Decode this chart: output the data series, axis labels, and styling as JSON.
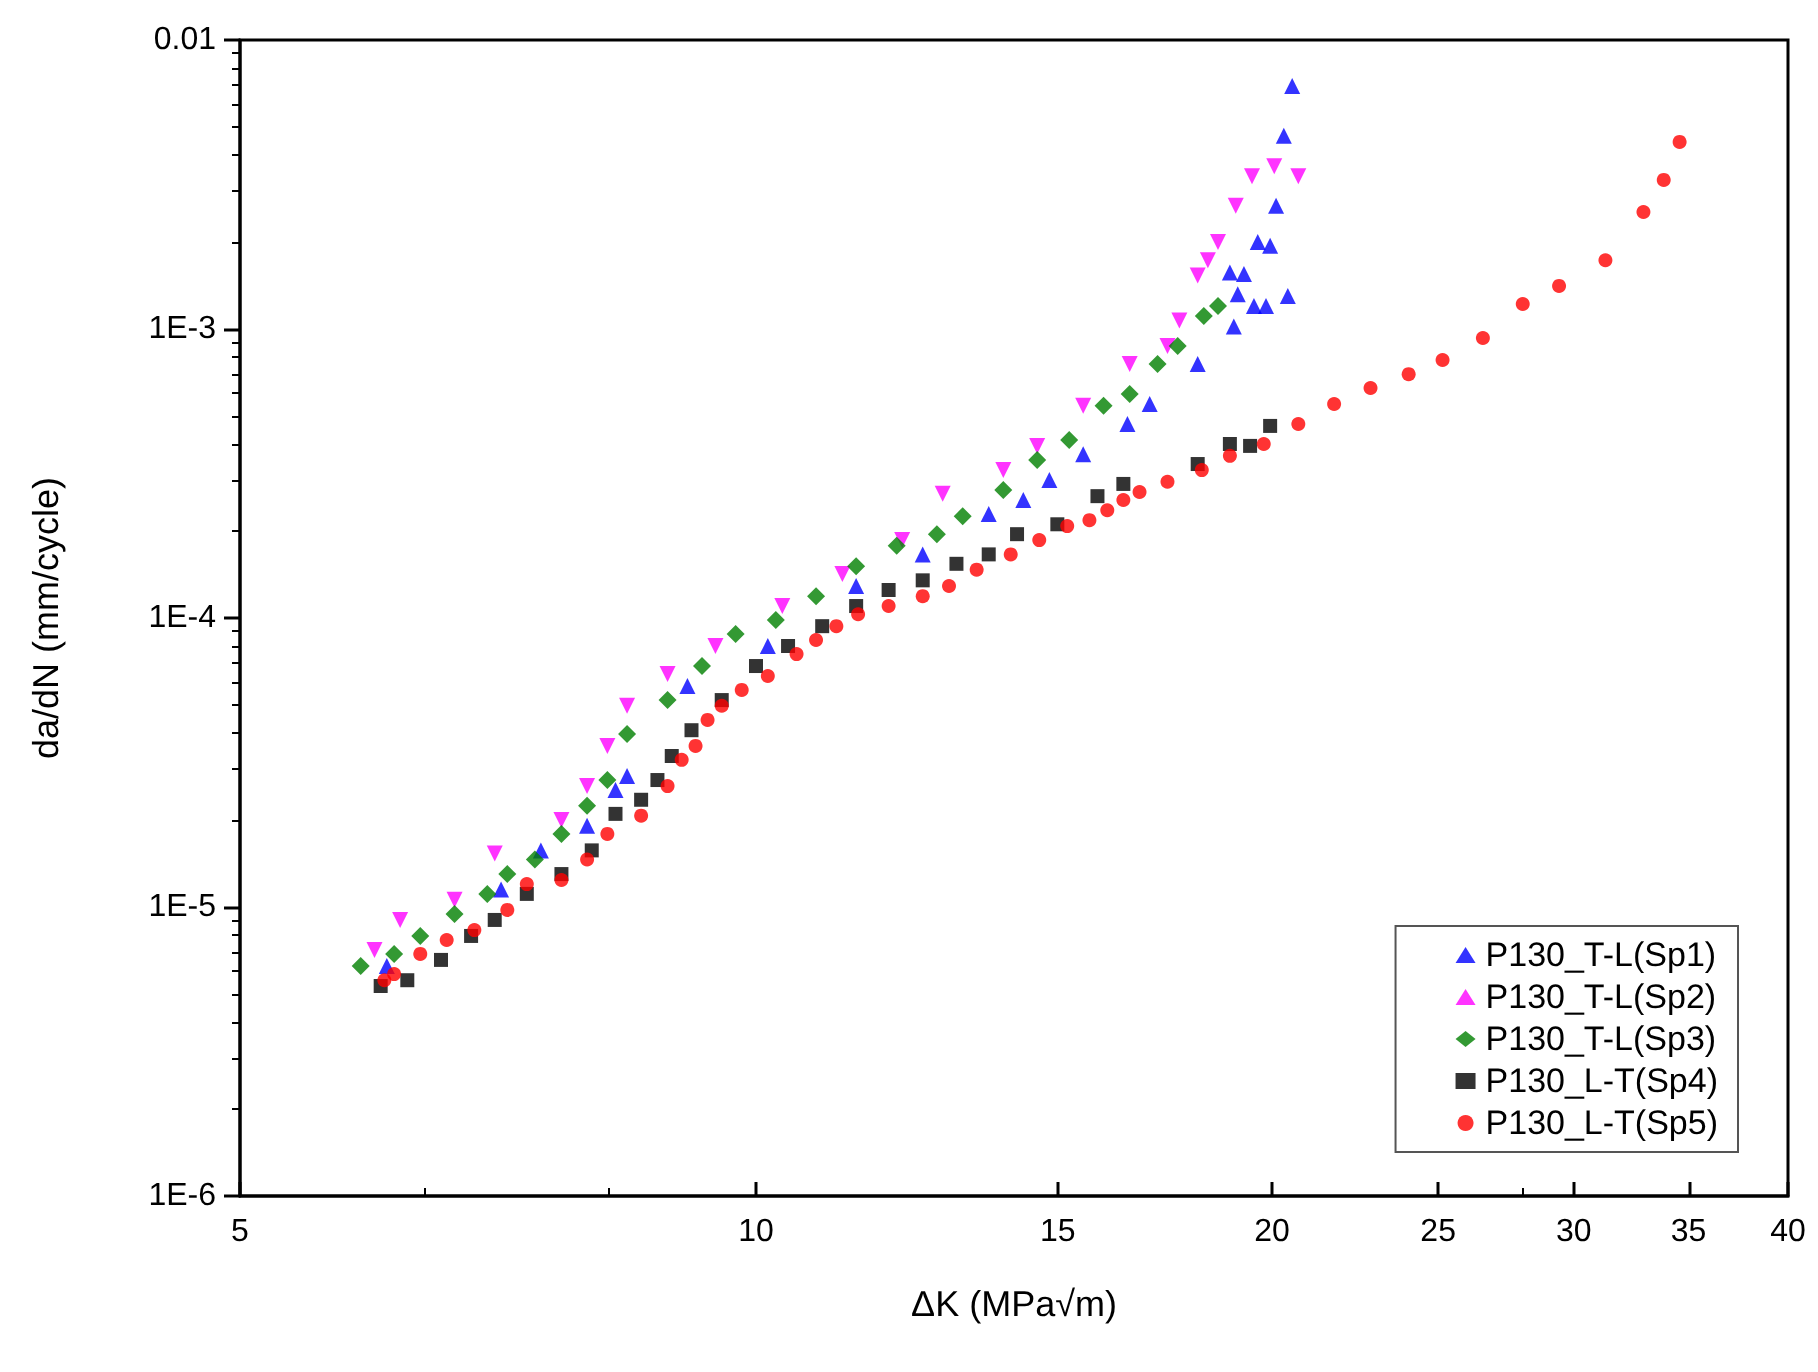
{
  "chart_data": {
    "type": "scatter",
    "xlabel": "ΔK (MPa√m)",
    "ylabel": "da/dN (mm/cycle)",
    "log": "xy",
    "xlim": [
      5,
      40
    ],
    "xticks": [
      5,
      10,
      15,
      20,
      25,
      30,
      35,
      40
    ],
    "ylim": [
      1e-06,
      0.01
    ],
    "yticks": [
      {
        "value": 1e-06,
        "label": "1E-6"
      },
      {
        "value": 1e-05,
        "label": "1E-5"
      },
      {
        "value": 0.0001,
        "label": "1E-4"
      },
      {
        "value": 0.001,
        "label": "1E-3"
      },
      0.01
    ],
    "grid": false,
    "legend": "bottom right",
    "series": [
      {
        "name": "P130_T-L(Sp1)",
        "color": "#0000ff",
        "marker": "triangle",
        "x": [
          6.09,
          7.1,
          7.49,
          7.97,
          8.28,
          8.41,
          9.12,
          10.16,
          11.44,
          12.51,
          13.67,
          14.32,
          14.83,
          15.52,
          16.47,
          16.97,
          18.1,
          19.0,
          18.9,
          19.1,
          19.52,
          19.84,
          20.43,
          19.26,
          19.62,
          19.95,
          20.11,
          20.32,
          20.55
        ],
        "values": [
          6.25e-06,
          1.15e-05,
          1.57e-05,
          1.91e-05,
          2.54e-05,
          2.84e-05,
          5.82e-05,
          8e-05,
          0.000129,
          0.000166,
          0.000229,
          0.000256,
          0.0003,
          0.000369,
          0.000469,
          0.00055,
          0.000757,
          0.00102,
          0.00157,
          0.00132,
          0.0012,
          0.0012,
          0.0013,
          0.00155,
          0.002,
          0.00194,
          0.00267,
          0.00466,
          0.00693
        ]
      },
      {
        "name": "P130_T-L(Sp2)",
        "color": "#ff00ff",
        "marker": "triangle-down",
        "x": [
          5.99,
          6.2,
          6.67,
          7.04,
          7.7,
          7.97,
          8.19,
          8.41,
          8.88,
          9.47,
          10.36,
          11.23,
          12.17,
          12.85,
          13.94,
          14.59,
          15.52,
          16.52,
          17.38,
          17.66,
          18.1,
          18.35,
          18.6,
          19.05,
          19.47,
          20.06,
          20.72
        ],
        "values": [
          7.1e-06,
          9.02e-06,
          1.06e-05,
          1.53e-05,
          2e-05,
          2.62e-05,
          3.61e-05,
          4.97e-05,
          6.4e-05,
          8e-05,
          0.00011,
          0.000142,
          0.000186,
          0.000269,
          0.000325,
          0.000394,
          0.000542,
          0.000757,
          0.000874,
          0.00107,
          0.00153,
          0.00173,
          0.002,
          0.00267,
          0.00338,
          0.00366,
          0.00338
        ]
      },
      {
        "name": "P130_T-L(Sp3)",
        "color": "#008000",
        "marker": "diamond",
        "x": [
          5.88,
          6.15,
          6.37,
          6.67,
          6.97,
          7.16,
          7.43,
          7.7,
          7.97,
          8.19,
          8.41,
          8.88,
          9.3,
          9.73,
          10.27,
          10.84,
          11.44,
          12.08,
          12.75,
          13.2,
          13.94,
          14.59,
          15.23,
          15.95,
          16.52,
          17.15,
          17.62,
          18.25,
          18.6
        ],
        "values": [
          6.25e-06,
          6.88e-06,
          7.94e-06,
          9.46e-06,
          1.11e-05,
          1.3e-05,
          1.46e-05,
          1.79e-05,
          2.24e-05,
          2.75e-05,
          3.97e-05,
          5.2e-05,
          6.82e-05,
          8.81e-05,
          9.84e-05,
          0.000119,
          0.000151,
          0.000178,
          0.000195,
          0.000225,
          0.000277,
          0.000352,
          0.000413,
          0.000542,
          0.000596,
          0.000757,
          0.000874,
          0.00111,
          0.0012
        ]
      },
      {
        "name": "P130_L-T(Sp4)",
        "color": "#000000",
        "marker": "square",
        "x": [
          6.04,
          6.26,
          6.55,
          6.82,
          7.04,
          7.35,
          7.7,
          8.02,
          8.28,
          8.57,
          8.76,
          8.93,
          9.17,
          9.55,
          10.0,
          10.44,
          10.93,
          11.44,
          11.95,
          12.51,
          13.09,
          13.67,
          14.2,
          14.99,
          15.82,
          16.38,
          18.1,
          18.9,
          19.42,
          19.95
        ],
        "values": [
          5.33e-06,
          5.58e-06,
          6.56e-06,
          7.94e-06,
          9.02e-06,
          1.11e-05,
          1.3e-05,
          1.57e-05,
          2.1e-05,
          2.35e-05,
          2.75e-05,
          3.33e-05,
          4.09e-05,
          5.2e-05,
          6.82e-05,
          8e-05,
          9.37e-05,
          0.00011,
          0.000125,
          0.000135,
          0.000154,
          0.000166,
          0.000195,
          0.000211,
          0.000264,
          0.000291,
          0.000341,
          0.0004,
          0.000394,
          0.000462
        ]
      },
      {
        "name": "P130_L-T(Sp5)",
        "color": "#ff0000",
        "marker": "circle",
        "x": [
          6.07,
          6.15,
          6.37,
          6.6,
          6.85,
          7.16,
          7.35,
          7.7,
          7.97,
          8.19,
          8.57,
          8.88,
          9.05,
          9.22,
          9.37,
          9.55,
          9.81,
          10.16,
          10.56,
          10.84,
          11.14,
          11.47,
          11.95,
          12.51,
          12.96,
          13.45,
          14.08,
          14.63,
          15.19,
          15.65,
          16.03,
          16.38,
          16.74,
          17.38,
          18.2,
          18.9,
          19.78,
          20.72,
          21.74,
          22.83,
          24.03,
          25.15,
          26.55,
          28.01,
          29.41,
          31.3,
          32.94,
          33.85,
          34.58
        ],
        "values": [
          5.58e-06,
          5.86e-06,
          6.88e-06,
          7.69e-06,
          8.32e-06,
          9.77e-06,
          1.2e-05,
          1.24e-05,
          1.46e-05,
          1.79e-05,
          2.07e-05,
          2.62e-05,
          3.23e-05,
          3.61e-05,
          4.44e-05,
          4.97e-05,
          5.64e-05,
          6.3e-05,
          7.5e-05,
          8.39e-05,
          9.37e-05,
          0.000103,
          0.00011,
          0.000119,
          0.000129,
          0.000147,
          0.000166,
          0.000186,
          0.000208,
          0.000218,
          0.000236,
          0.000256,
          0.000273,
          0.000296,
          0.000325,
          0.000364,
          0.0004,
          0.000469,
          0.00055,
          0.000625,
          0.000698,
          0.000781,
          0.000931,
          0.00122,
          0.00141,
          0.00173,
          0.00254,
          0.00328,
          0.00444
        ]
      }
    ]
  }
}
